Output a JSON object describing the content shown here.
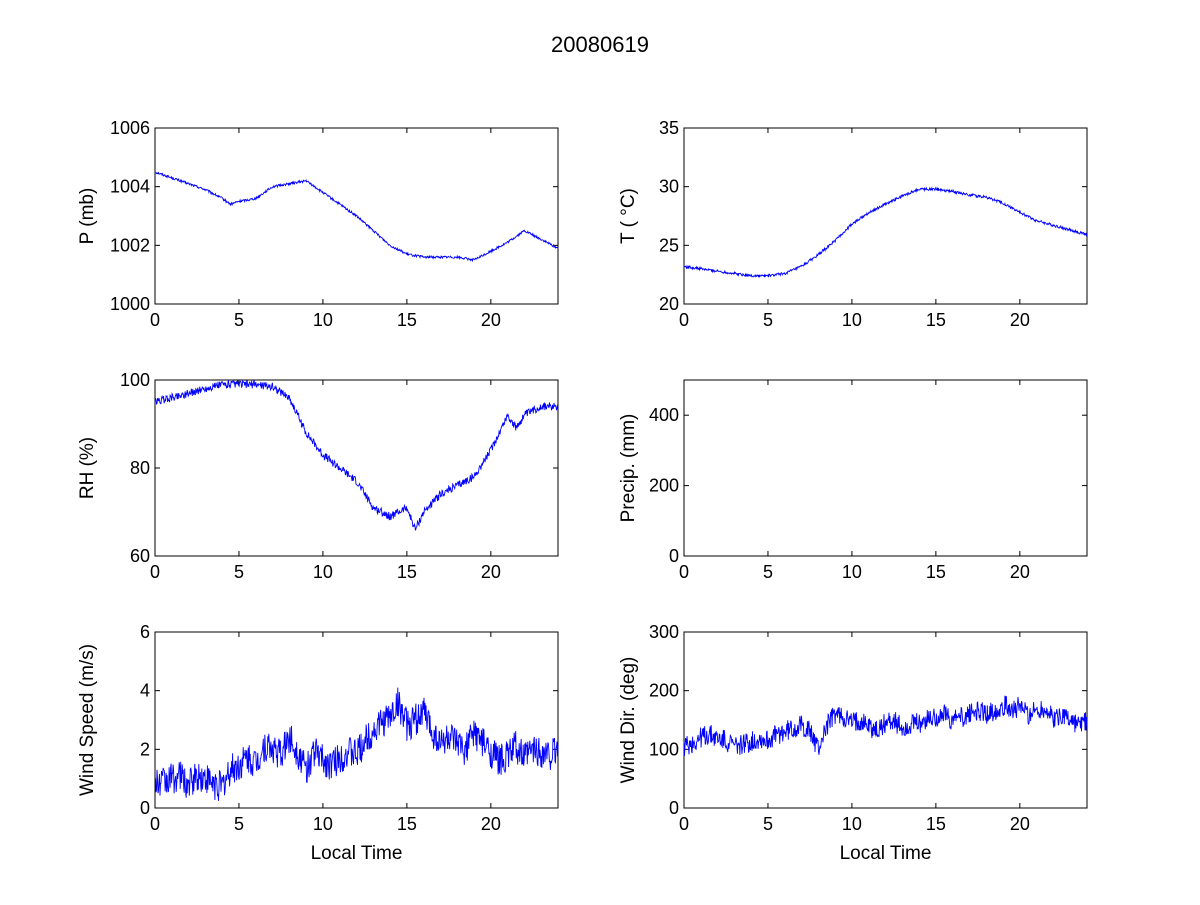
{
  "figure": {
    "title": "20080619"
  },
  "chart_data": [
    {
      "type": "line",
      "xlabel": "",
      "ylabel": "P (mb)",
      "xlim": [
        0,
        24
      ],
      "ylim": [
        1000,
        1006
      ],
      "xticks": [
        0,
        5,
        10,
        15,
        20
      ],
      "yticks": [
        1000,
        1002,
        1004,
        1006
      ],
      "grid": false,
      "color": "#0000ff",
      "x": [
        0,
        1,
        2,
        3,
        4,
        4.5,
        5,
        6,
        7,
        8,
        9,
        10,
        11,
        12,
        13,
        14,
        15,
        16,
        17,
        18,
        19,
        20,
        21,
        22,
        23,
        24
      ],
      "y": [
        1004.5,
        1004.3,
        1004.1,
        1003.9,
        1003.6,
        1003.4,
        1003.5,
        1003.6,
        1004.0,
        1004.1,
        1004.2,
        1003.8,
        1003.4,
        1003.0,
        1002.5,
        1002.0,
        1001.7,
        1001.6,
        1001.6,
        1001.6,
        1001.5,
        1001.8,
        1002.1,
        1002.5,
        1002.2,
        1001.9
      ]
    },
    {
      "type": "line",
      "xlabel": "",
      "ylabel": "T ( °C)",
      "xlim": [
        0,
        24
      ],
      "ylim": [
        20,
        35
      ],
      "xticks": [
        0,
        5,
        10,
        15,
        20
      ],
      "yticks": [
        20,
        25,
        30,
        35
      ],
      "grid": false,
      "color": "#0000ff",
      "x": [
        0,
        1,
        2,
        3,
        4,
        5,
        6,
        7,
        8,
        9,
        10,
        11,
        12,
        13,
        14,
        15,
        16,
        17,
        18,
        19,
        20,
        21,
        22,
        23,
        24
      ],
      "y": [
        23.2,
        23.0,
        22.8,
        22.6,
        22.4,
        22.4,
        22.6,
        23.2,
        24.2,
        25.4,
        26.8,
        27.8,
        28.5,
        29.2,
        29.8,
        29.8,
        29.6,
        29.3,
        29.1,
        28.6,
        27.8,
        27.1,
        26.7,
        26.3,
        25.9
      ]
    },
    {
      "type": "line",
      "xlabel": "",
      "ylabel": "RH (%)",
      "xlim": [
        0,
        24
      ],
      "ylim": [
        60,
        100
      ],
      "xticks": [
        0,
        5,
        10,
        15,
        20
      ],
      "yticks": [
        60,
        80,
        100
      ],
      "grid": false,
      "color": "#0000ff",
      "x": [
        0,
        1,
        2,
        3,
        4,
        5,
        6,
        7,
        8,
        9,
        10,
        11,
        12,
        13,
        14,
        15,
        15.5,
        16,
        17,
        18,
        19,
        20,
        21,
        21.5,
        22,
        23,
        24
      ],
      "y": [
        95,
        96,
        97,
        98,
        99,
        99,
        99,
        98.5,
        96,
        88,
        83,
        80,
        77,
        71,
        69,
        71,
        66,
        70,
        74,
        76,
        78,
        84,
        92,
        89,
        92,
        94,
        94
      ]
    },
    {
      "type": "line",
      "xlabel": "",
      "ylabel": "Precip. (mm)",
      "xlim": [
        0,
        24
      ],
      "ylim": [
        0,
        500
      ],
      "xticks": [
        0,
        5,
        10,
        15,
        20
      ],
      "yticks": [
        0,
        200,
        400
      ],
      "grid": false,
      "color": "#0000ff",
      "x": [],
      "y": []
    },
    {
      "type": "line",
      "xlabel": "Local Time",
      "ylabel": "Wind Speed (m/s)",
      "xlim": [
        0,
        24
      ],
      "ylim": [
        0,
        6
      ],
      "xticks": [
        0,
        5,
        10,
        15,
        20
      ],
      "yticks": [
        0,
        2,
        4,
        6
      ],
      "grid": false,
      "color": "#0000ff",
      "x": [
        0,
        0.5,
        1,
        1.5,
        2,
        2.5,
        3,
        3.5,
        4,
        4.5,
        5,
        5.5,
        6,
        6.5,
        7,
        7.5,
        8,
        8.5,
        9,
        9.5,
        10,
        10.5,
        11,
        11.5,
        12,
        12.5,
        13,
        13.5,
        14,
        14.5,
        15,
        15.5,
        16,
        16.5,
        17,
        17.5,
        18,
        18.5,
        19,
        19.5,
        20,
        20.5,
        21,
        21.5,
        22,
        22.5,
        23,
        23.5,
        24
      ],
      "y": [
        0.8,
        0.9,
        1.0,
        1.1,
        0.8,
        1.1,
        1.0,
        0.8,
        0.7,
        1.3,
        1.4,
        1.7,
        1.5,
        2.1,
        2.0,
        1.8,
        2.4,
        1.9,
        1.3,
        2.0,
        1.6,
        1.5,
        1.7,
        1.9,
        1.8,
        2.3,
        2.6,
        2.9,
        3.1,
        3.6,
        2.8,
        3.0,
        3.3,
        2.6,
        2.2,
        2.4,
        2.1,
        2.0,
        2.6,
        2.2,
        1.9,
        1.6,
        1.8,
        2.1,
        1.7,
        2.0,
        1.9,
        1.8,
        2.0
      ]
    },
    {
      "type": "line",
      "xlabel": "Local Time",
      "ylabel": "Wind Dir. (deg)",
      "xlim": [
        0,
        24
      ],
      "ylim": [
        0,
        300
      ],
      "xticks": [
        0,
        5,
        10,
        15,
        20
      ],
      "yticks": [
        0,
        100,
        200,
        300
      ],
      "grid": false,
      "color": "#0000ff",
      "x": [
        0,
        0.5,
        1,
        1.5,
        2,
        2.5,
        3,
        3.5,
        4,
        4.5,
        5,
        5.5,
        6,
        6.5,
        7,
        7.5,
        8,
        8.5,
        9,
        9.5,
        10,
        10.5,
        11,
        11.5,
        12,
        12.5,
        13,
        13.5,
        14,
        14.5,
        15,
        15.5,
        16,
        16.5,
        17,
        17.5,
        18,
        18.5,
        19,
        19.5,
        20,
        20.5,
        21,
        21.5,
        22,
        22.5,
        23,
        23.5,
        24
      ],
      "y": [
        105,
        110,
        120,
        125,
        118,
        115,
        105,
        110,
        112,
        118,
        115,
        125,
        130,
        135,
        140,
        130,
        100,
        140,
        160,
        155,
        145,
        150,
        140,
        130,
        145,
        150,
        135,
        140,
        145,
        150,
        155,
        160,
        150,
        155,
        160,
        165,
        160,
        165,
        175,
        170,
        172,
        160,
        165,
        170,
        150,
        160,
        150,
        140,
        150
      ]
    }
  ]
}
